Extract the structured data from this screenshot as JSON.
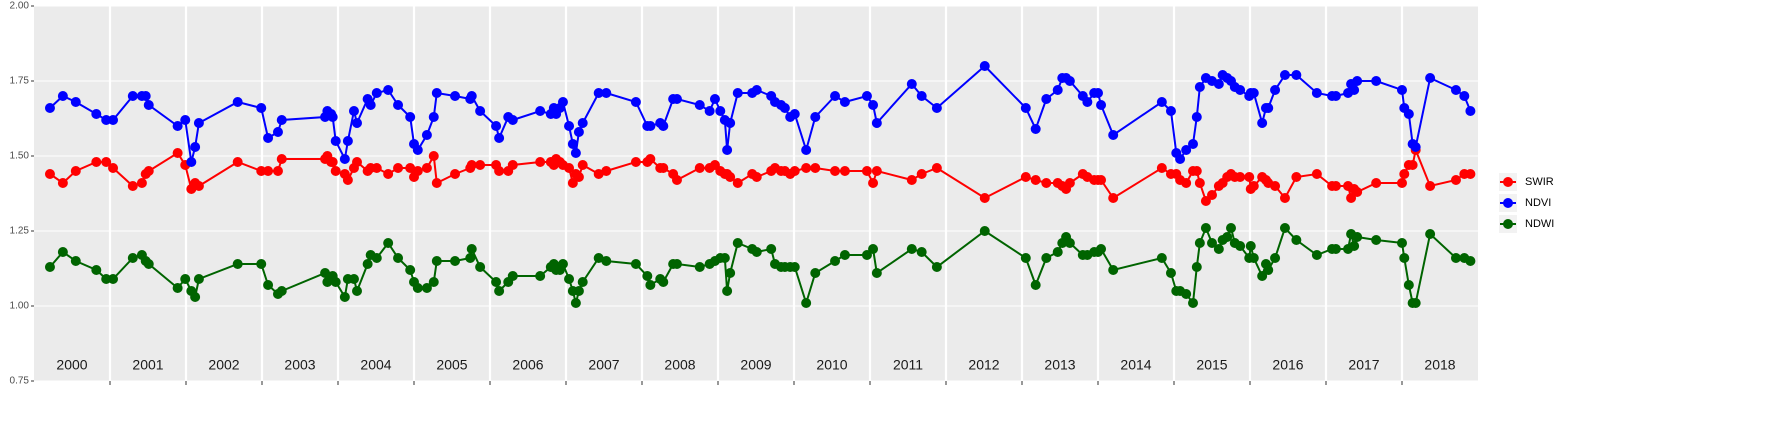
{
  "chart_data": {
    "type": "line",
    "xlim": [
      2000,
      2019
    ],
    "ylim": [
      0.75,
      2.0
    ],
    "yticks": [
      {
        "value": 0.75,
        "label": "0.75"
      },
      {
        "value": 1.0,
        "label": "1.00"
      },
      {
        "value": 1.25,
        "label": "1.25"
      },
      {
        "value": 1.5,
        "label": "1.50"
      },
      {
        "value": 1.75,
        "label": "1.75"
      },
      {
        "value": 2.0,
        "label": "2.00"
      }
    ],
    "xticks": [
      {
        "value": 2000,
        "label": "2000"
      },
      {
        "value": 2001,
        "label": "2001"
      },
      {
        "value": 2002,
        "label": "2002"
      },
      {
        "value": 2003,
        "label": "2003"
      },
      {
        "value": 2004,
        "label": "2004"
      },
      {
        "value": 2005,
        "label": "2005"
      },
      {
        "value": 2006,
        "label": "2006"
      },
      {
        "value": 2007,
        "label": "2007"
      },
      {
        "value": 2008,
        "label": "2008"
      },
      {
        "value": 2009,
        "label": "2009"
      },
      {
        "value": 2010,
        "label": "2010"
      },
      {
        "value": 2011,
        "label": "2011"
      },
      {
        "value": 2012,
        "label": "2012"
      },
      {
        "value": 2013,
        "label": "2013"
      },
      {
        "value": 2014,
        "label": "2014"
      },
      {
        "value": 2015,
        "label": "2015"
      },
      {
        "value": 2016,
        "label": "2016"
      },
      {
        "value": 2017,
        "label": "2017"
      },
      {
        "value": 2018,
        "label": "2018"
      }
    ],
    "grid": true,
    "legend": "right",
    "x": [
      2000.21,
      2000.38,
      2000.55,
      2000.82,
      2000.95,
      2001.04,
      2001.3,
      2001.42,
      2001.47,
      2001.51,
      2001.89,
      2001.99,
      2002.07,
      2002.12,
      2002.17,
      2002.68,
      2002.99,
      2003.08,
      2003.21,
      2003.26,
      2003.83,
      2003.86,
      2003.91,
      2003.93,
      2003.97,
      2004.09,
      2004.13,
      2004.21,
      2004.25,
      2004.39,
      2004.43,
      2004.51,
      2004.66,
      2004.79,
      2004.95,
      2005.0,
      2005.05,
      2005.17,
      2005.26,
      2005.3,
      2005.54,
      2005.74,
      2005.76,
      2005.87,
      2006.08,
      2006.12,
      2006.24,
      2006.3,
      2006.66,
      2006.8,
      2006.84,
      2006.87,
      2006.92,
      2006.96,
      2007.04,
      2007.09,
      2007.13,
      2007.17,
      2007.22,
      2007.43,
      2007.53,
      2007.92,
      2008.07,
      2008.11,
      2008.24,
      2008.28,
      2008.41,
      2008.46,
      2008.76,
      2008.89,
      2008.96,
      2009.03,
      2009.09,
      2009.12,
      2009.16,
      2009.26,
      2009.45,
      2009.51,
      2009.7,
      2009.75,
      2009.83,
      2009.88,
      2009.95,
      2010.01,
      2010.16,
      2010.28,
      2010.54,
      2010.67,
      2010.96,
      2011.04,
      2011.09,
      2011.55,
      2011.68,
      2011.88,
      2012.51,
      2013.05,
      2013.18,
      2013.32,
      2013.47,
      2013.53,
      2013.58,
      2013.63,
      2013.8,
      2013.86,
      2013.95,
      2014.0,
      2014.04,
      2014.2,
      2014.84,
      2014.96,
      2015.03,
      2015.08,
      2015.16,
      2015.25,
      2015.3,
      2015.34,
      2015.42,
      2015.5,
      2015.59,
      2015.64,
      2015.7,
      2015.75,
      2015.8,
      2015.87,
      2015.99,
      2016.01,
      2016.05,
      2016.16,
      2016.21,
      2016.24,
      2016.33,
      2016.46,
      2016.61,
      2016.88,
      2017.08,
      2017.13,
      2017.29,
      2017.33,
      2017.37,
      2017.41,
      2017.66,
      2018.0,
      2018.03,
      2018.09,
      2018.14,
      2018.18,
      2018.37,
      2018.71,
      2018.82,
      2018.9
    ],
    "series": [
      {
        "name": "SWIR",
        "color": "#ff0000",
        "values": [
          1.44,
          1.41,
          1.45,
          1.48,
          1.48,
          1.46,
          1.4,
          1.41,
          1.44,
          1.45,
          1.51,
          1.47,
          1.39,
          1.41,
          1.4,
          1.48,
          1.45,
          1.45,
          1.45,
          1.49,
          1.49,
          1.5,
          1.48,
          1.48,
          1.45,
          1.44,
          1.42,
          1.46,
          1.48,
          1.45,
          1.46,
          1.46,
          1.44,
          1.46,
          1.46,
          1.43,
          1.45,
          1.46,
          1.5,
          1.41,
          1.44,
          1.46,
          1.47,
          1.47,
          1.47,
          1.45,
          1.45,
          1.47,
          1.48,
          1.48,
          1.47,
          1.49,
          1.48,
          1.47,
          1.46,
          1.41,
          1.44,
          1.43,
          1.47,
          1.44,
          1.45,
          1.48,
          1.48,
          1.49,
          1.46,
          1.46,
          1.44,
          1.42,
          1.46,
          1.46,
          1.47,
          1.45,
          1.44,
          1.44,
          1.43,
          1.41,
          1.44,
          1.43,
          1.45,
          1.46,
          1.45,
          1.45,
          1.44,
          1.45,
          1.46,
          1.46,
          1.45,
          1.45,
          1.45,
          1.41,
          1.45,
          1.42,
          1.44,
          1.46,
          1.36,
          1.43,
          1.42,
          1.41,
          1.41,
          1.4,
          1.39,
          1.41,
          1.44,
          1.43,
          1.42,
          1.42,
          1.42,
          1.36,
          1.46,
          1.44,
          1.44,
          1.42,
          1.41,
          1.45,
          1.45,
          1.41,
          1.35,
          1.37,
          1.4,
          1.41,
          1.43,
          1.44,
          1.43,
          1.43,
          1.43,
          1.39,
          1.4,
          1.43,
          1.42,
          1.41,
          1.4,
          1.36,
          1.43,
          1.44,
          1.4,
          1.4,
          1.4,
          1.36,
          1.39,
          1.38,
          1.41,
          1.41,
          1.44,
          1.47,
          1.47,
          1.52,
          1.4,
          1.42,
          1.44,
          1.44
        ]
      },
      {
        "name": "NDVI",
        "color": "#0000ff",
        "values": [
          1.66,
          1.7,
          1.68,
          1.64,
          1.62,
          1.62,
          1.7,
          1.7,
          1.7,
          1.67,
          1.6,
          1.62,
          1.48,
          1.53,
          1.61,
          1.68,
          1.66,
          1.56,
          1.58,
          1.62,
          1.63,
          1.65,
          1.64,
          1.63,
          1.55,
          1.49,
          1.55,
          1.65,
          1.61,
          1.69,
          1.67,
          1.71,
          1.72,
          1.67,
          1.63,
          1.54,
          1.52,
          1.57,
          1.63,
          1.71,
          1.7,
          1.69,
          1.7,
          1.65,
          1.6,
          1.56,
          1.63,
          1.62,
          1.65,
          1.64,
          1.66,
          1.64,
          1.66,
          1.68,
          1.6,
          1.54,
          1.51,
          1.58,
          1.61,
          1.71,
          1.71,
          1.68,
          1.6,
          1.6,
          1.61,
          1.6,
          1.69,
          1.69,
          1.67,
          1.65,
          1.69,
          1.65,
          1.62,
          1.52,
          1.61,
          1.71,
          1.71,
          1.72,
          1.7,
          1.68,
          1.67,
          1.66,
          1.63,
          1.64,
          1.52,
          1.63,
          1.7,
          1.68,
          1.7,
          1.67,
          1.61,
          1.74,
          1.7,
          1.66,
          1.8,
          1.66,
          1.59,
          1.69,
          1.72,
          1.76,
          1.76,
          1.75,
          1.7,
          1.68,
          1.71,
          1.71,
          1.67,
          1.57,
          1.68,
          1.65,
          1.51,
          1.49,
          1.52,
          1.54,
          1.63,
          1.73,
          1.76,
          1.75,
          1.74,
          1.77,
          1.76,
          1.75,
          1.73,
          1.72,
          1.7,
          1.71,
          1.71,
          1.61,
          1.66,
          1.66,
          1.72,
          1.77,
          1.77,
          1.71,
          1.7,
          1.7,
          1.71,
          1.74,
          1.72,
          1.75,
          1.75,
          1.72,
          1.66,
          1.64,
          1.54,
          1.53,
          1.76,
          1.72,
          1.7,
          1.65
        ]
      },
      {
        "name": "NDWI",
        "color": "#006400",
        "values": [
          1.13,
          1.18,
          1.15,
          1.12,
          1.09,
          1.09,
          1.16,
          1.17,
          1.15,
          1.14,
          1.06,
          1.09,
          1.05,
          1.03,
          1.09,
          1.14,
          1.14,
          1.07,
          1.04,
          1.05,
          1.11,
          1.08,
          1.09,
          1.1,
          1.08,
          1.03,
          1.09,
          1.09,
          1.05,
          1.14,
          1.17,
          1.16,
          1.21,
          1.16,
          1.12,
          1.08,
          1.06,
          1.06,
          1.08,
          1.15,
          1.15,
          1.16,
          1.19,
          1.13,
          1.08,
          1.05,
          1.08,
          1.1,
          1.1,
          1.13,
          1.14,
          1.12,
          1.12,
          1.14,
          1.09,
          1.05,
          1.01,
          1.05,
          1.08,
          1.16,
          1.15,
          1.14,
          1.1,
          1.07,
          1.09,
          1.08,
          1.14,
          1.14,
          1.13,
          1.14,
          1.15,
          1.16,
          1.16,
          1.05,
          1.11,
          1.21,
          1.19,
          1.18,
          1.19,
          1.14,
          1.13,
          1.13,
          1.13,
          1.13,
          1.01,
          1.11,
          1.15,
          1.17,
          1.17,
          1.19,
          1.11,
          1.19,
          1.18,
          1.13,
          1.25,
          1.16,
          1.07,
          1.16,
          1.18,
          1.21,
          1.23,
          1.21,
          1.17,
          1.17,
          1.18,
          1.18,
          1.19,
          1.12,
          1.16,
          1.11,
          1.05,
          1.05,
          1.04,
          1.01,
          1.13,
          1.21,
          1.26,
          1.21,
          1.19,
          1.22,
          1.23,
          1.26,
          1.21,
          1.2,
          1.16,
          1.2,
          1.16,
          1.1,
          1.14,
          1.12,
          1.16,
          1.26,
          1.22,
          1.17,
          1.19,
          1.19,
          1.19,
          1.24,
          1.2,
          1.23,
          1.22,
          1.21,
          1.16,
          1.07,
          1.01,
          1.01,
          1.24,
          1.16,
          1.16,
          1.15
        ]
      }
    ]
  }
}
